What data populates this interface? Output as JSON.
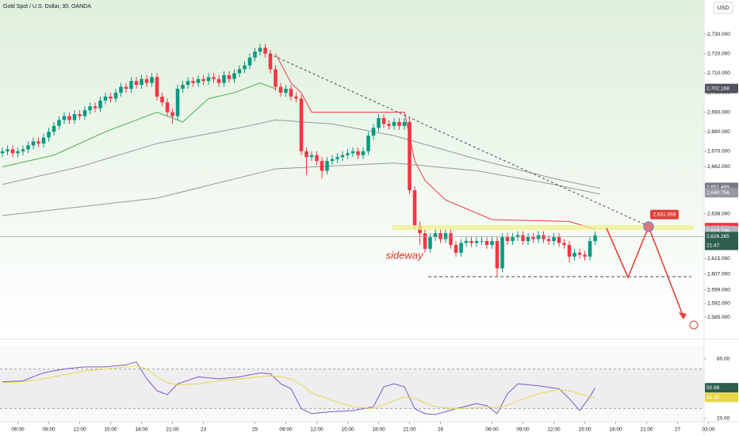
{
  "chart_data": [
    {
      "type": "candlestick",
      "title": "Gold Spot / U.S. Dollar, 30, OANDA",
      "currency": "USD",
      "countdown": "21:47",
      "up_color": "#089981",
      "down_color": "#f23645",
      "open": [
        2669,
        2670,
        2671,
        2669,
        2670,
        2671,
        2673,
        2675,
        2674,
        2677,
        2680,
        2683,
        2686,
        2688,
        2686,
        2689,
        2688,
        2691,
        2693,
        2692,
        2696,
        2698,
        2697,
        2700,
        2703,
        2702,
        2706,
        2704,
        2707,
        2705,
        2708,
        2698,
        2695,
        2690,
        2688,
        2702,
        2704,
        2706,
        2705,
        2707,
        2706,
        2708,
        2707,
        2705,
        2709,
        2707,
        2710,
        2712,
        2714,
        2718,
        2721,
        2723,
        2720,
        2712,
        2703,
        2700,
        2702,
        2698,
        2697,
        2670,
        2667,
        2668,
        2665,
        2660,
        2665,
        2666,
        2667,
        2668,
        2669,
        2670,
        2668,
        2670,
        2678,
        2682,
        2687,
        2684,
        2683,
        2685,
        2683,
        2685,
        2650,
        2632,
        2628,
        2620,
        2626,
        2628,
        2625,
        2628,
        2622,
        2618,
        2623,
        2624,
        2623,
        2624,
        2624,
        2622,
        2624,
        2610,
        2626,
        2624,
        2626,
        2627,
        2624,
        2626,
        2625,
        2627,
        2625,
        2624,
        2626,
        2623,
        2622,
        2616,
        2618,
        2617,
        2616,
        2624
      ],
      "high": [
        2672,
        2673,
        2673,
        2672,
        2673,
        2675,
        2677,
        2677,
        2679,
        2682,
        2685,
        2688,
        2690,
        2690,
        2691,
        2691,
        2693,
        2695,
        2695,
        2698,
        2700,
        2700,
        2702,
        2705,
        2705,
        2708,
        2708,
        2709,
        2709,
        2710,
        2710,
        2700,
        2697,
        2692,
        2704,
        2706,
        2708,
        2708,
        2709,
        2709,
        2710,
        2710,
        2709,
        2711,
        2711,
        2712,
        2714,
        2716,
        2720,
        2723,
        2725,
        2725,
        2722,
        2714,
        2705,
        2704,
        2704,
        2700,
        2699,
        2672,
        2670,
        2670,
        2667,
        2667,
        2668,
        2669,
        2670,
        2671,
        2672,
        2672,
        2672,
        2680,
        2684,
        2689,
        2689,
        2686,
        2687,
        2687,
        2687,
        2687,
        2652,
        2634,
        2630,
        2628,
        2630,
        2630,
        2630,
        2630,
        2624,
        2625,
        2626,
        2626,
        2626,
        2626,
        2626,
        2626,
        2626,
        2628,
        2628,
        2628,
        2629,
        2629,
        2628,
        2628,
        2629,
        2629,
        2627,
        2628,
        2628,
        2625,
        2624,
        2620,
        2620,
        2619,
        2626,
        2629
      ],
      "low": [
        2667,
        2668,
        2667,
        2667,
        2668,
        2669,
        2671,
        2672,
        2672,
        2675,
        2678,
        2681,
        2684,
        2684,
        2684,
        2686,
        2686,
        2689,
        2690,
        2690,
        2694,
        2695,
        2695,
        2698,
        2700,
        2700,
        2702,
        2702,
        2703,
        2703,
        2696,
        2693,
        2688,
        2684,
        2686,
        2700,
        2702,
        2703,
        2703,
        2704,
        2704,
        2705,
        2703,
        2703,
        2705,
        2705,
        2708,
        2710,
        2712,
        2716,
        2719,
        2718,
        2710,
        2701,
        2698,
        2698,
        2696,
        2695,
        2668,
        2658,
        2665,
        2663,
        2656,
        2658,
        2663,
        2664,
        2665,
        2666,
        2667,
        2666,
        2666,
        2668,
        2676,
        2680,
        2682,
        2681,
        2681,
        2681,
        2681,
        2648,
        2630,
        2622,
        2618,
        2618,
        2624,
        2623,
        2623,
        2620,
        2616,
        2616,
        2621,
        2621,
        2621,
        2622,
        2620,
        2620,
        2606,
        2608,
        2622,
        2622,
        2624,
        2622,
        2622,
        2623,
        2623,
        2623,
        2622,
        2622,
        2621,
        2620,
        2613,
        2614,
        2615,
        2614,
        2614,
        2622
      ],
      "close": [
        2670,
        2671,
        2669,
        2670,
        2671,
        2673,
        2675,
        2674,
        2677,
        2680,
        2683,
        2686,
        2688,
        2686,
        2689,
        2688,
        2691,
        2693,
        2692,
        2696,
        2698,
        2697,
        2700,
        2703,
        2702,
        2706,
        2704,
        2707,
        2705,
        2708,
        2698,
        2695,
        2690,
        2688,
        2702,
        2704,
        2706,
        2705,
        2707,
        2706,
        2708,
        2707,
        2705,
        2709,
        2707,
        2710,
        2712,
        2714,
        2718,
        2721,
        2723,
        2720,
        2712,
        2703,
        2700,
        2702,
        2698,
        2697,
        2670,
        2667,
        2668,
        2665,
        2660,
        2665,
        2666,
        2667,
        2668,
        2669,
        2670,
        2668,
        2670,
        2678,
        2682,
        2687,
        2684,
        2683,
        2685,
        2683,
        2685,
        2650,
        2632,
        2628,
        2620,
        2626,
        2628,
        2625,
        2628,
        2622,
        2618,
        2623,
        2624,
        2623,
        2624,
        2624,
        2622,
        2624,
        2610,
        2626,
        2624,
        2626,
        2627,
        2624,
        2626,
        2625,
        2627,
        2625,
        2624,
        2626,
        2623,
        2622,
        2616,
        2618,
        2617,
        2616,
        2624,
        2627
      ],
      "overlays": [
        {
          "color": "#9598a1",
          "x": [
            0,
            15,
            30,
            46,
            53,
            64,
            76,
            92,
            107,
            116
          ],
          "values": [
            2653,
            2662,
            2674,
            2682,
            2686,
            2684,
            2678,
            2666,
            2656,
            2651
          ]
        },
        {
          "color": "#9598a1",
          "x": [
            0,
            30,
            53,
            76,
            92,
            107,
            116
          ],
          "values": [
            2637,
            2646,
            2661,
            2664,
            2660,
            2653,
            2648
          ]
        },
        {
          "color": "#4caf50",
          "x": [
            0,
            10,
            20,
            30,
            35,
            40,
            45,
            50,
            53
          ],
          "values": [
            2662,
            2668,
            2680,
            2690,
            2685,
            2697,
            2700,
            2705,
            2702
          ]
        },
        {
          "color": "#f23645",
          "x": [
            53,
            56,
            58,
            60,
            78,
            80,
            82,
            86,
            95,
            110,
            115
          ],
          "values": [
            2720,
            2705,
            2700,
            2690,
            2690,
            2665,
            2655,
            2645,
            2635,
            2634,
            2630
          ]
        }
      ],
      "xlim": [
        -0.46,
        136.15
      ],
      "xticks": [
        {
          "value": 3,
          "label": "06:00"
        },
        {
          "value": 9,
          "label": "09:00"
        },
        {
          "value": 15,
          "label": "12:00"
        },
        {
          "value": 21,
          "label": "15:00"
        },
        {
          "value": 27,
          "label": "18:00"
        },
        {
          "value": 33,
          "label": "21:00"
        },
        {
          "value": 39,
          "label": "23"
        },
        {
          "value": 49,
          "label": "25"
        },
        {
          "value": 55,
          "label": "09:00"
        },
        {
          "value": 61,
          "label": "12:00"
        },
        {
          "value": 67,
          "label": "15:00"
        },
        {
          "value": 73,
          "label": "18:00"
        },
        {
          "value": 79,
          "label": "21:00"
        },
        {
          "value": 85,
          "label": "26"
        },
        {
          "value": 95,
          "label": "06:00"
        },
        {
          "value": 101,
          "label": "09:00"
        },
        {
          "value": 107,
          "label": "12:00"
        },
        {
          "value": 113,
          "label": "15:00"
        },
        {
          "value": 119,
          "label": "18:00"
        },
        {
          "value": 125,
          "label": "21:00"
        },
        {
          "value": 131,
          "label": "27"
        },
        {
          "value": 137,
          "label": "03:00"
        }
      ],
      "ylim": [
        2576.9,
        2747.5
      ],
      "yticks": [
        {
          "value": 2730,
          "label": "2,730.000"
        },
        {
          "value": 2720,
          "label": "2,720.000"
        },
        {
          "value": 2710,
          "label": "2,710.000"
        },
        {
          "value": 2700,
          "label": "2,700.000"
        },
        {
          "value": 2690,
          "label": "2,690.000"
        },
        {
          "value": 2680,
          "label": "2,680.000"
        },
        {
          "value": 2670,
          "label": "2,670.000"
        },
        {
          "value": 2662,
          "label": "2,662.000"
        },
        {
          "value": 2638,
          "label": "2,638.000"
        },
        {
          "value": 2615,
          "label": "2,615.000"
        },
        {
          "value": 2607,
          "label": "2,607.000"
        },
        {
          "value": 2599,
          "label": "2,599.000"
        },
        {
          "value": 2592,
          "label": "2,592.000"
        },
        {
          "value": 2585,
          "label": "2,585.000"
        }
      ],
      "price_labels": [
        {
          "value": 2702.168,
          "label": "2,702.168",
          "color": "#50535e"
        },
        {
          "value": 2651.489,
          "label": "2,651.489",
          "color": "#787b86"
        },
        {
          "value": 2648.756,
          "label": "2,648.756",
          "color": "#9598a1"
        },
        {
          "value": 2630.893,
          "label": "2,630.893",
          "color": "#f23645"
        },
        {
          "value": 2629.246,
          "label": "2,629.246",
          "color": "#b2b5be"
        },
        {
          "value": 2626.265,
          "label": "2,626.265",
          "color": "#2e5e4e"
        }
      ],
      "annotations": [
        {
          "text": "sideway"
        },
        {
          "value": 2631.069,
          "label": "2,631.069"
        }
      ]
    },
    {
      "type": "line",
      "series": [
        {
          "color": "#7e57c2",
          "x": [
            0,
            4,
            8,
            12,
            16,
            20,
            24,
            26,
            28,
            30,
            32,
            34,
            38,
            42,
            46,
            50,
            52,
            54,
            56,
            58,
            60,
            64,
            68,
            72,
            74,
            76,
            78,
            80,
            82,
            84,
            88,
            92,
            94,
            96,
            98,
            100,
            104,
            108,
            110,
            112,
            114,
            115
          ],
          "values": [
            57,
            58,
            66,
            70,
            72,
            72,
            74,
            77,
            60,
            48,
            44,
            55,
            62,
            60,
            62,
            66,
            65,
            55,
            50,
            30,
            25,
            27,
            28,
            32,
            52,
            55,
            52,
            30,
            25,
            24,
            30,
            35,
            33,
            25,
            45,
            55,
            53,
            50,
            40,
            28,
            42,
            50.98
          ]
        },
        {
          "color": "#e6d84a",
          "x": [
            0,
            4,
            8,
            12,
            16,
            20,
            24,
            26,
            28,
            30,
            32,
            34,
            38,
            42,
            46,
            50,
            52,
            54,
            56,
            58,
            60,
            64,
            68,
            72,
            74,
            76,
            78,
            80,
            82,
            84,
            88,
            92,
            94,
            96,
            98,
            100,
            104,
            108,
            110,
            112,
            114,
            115
          ],
          "values": [
            56,
            57,
            60,
            64,
            68,
            70,
            72,
            73,
            70,
            62,
            56,
            54,
            55,
            58,
            60,
            62,
            63,
            62,
            60,
            54,
            46,
            38,
            32,
            30,
            34,
            38,
            42,
            40,
            36,
            32,
            30,
            31,
            32,
            31,
            33,
            38,
            45,
            49,
            48,
            45,
            42,
            41.32
          ]
        }
      ],
      "ylim": [
        16.8,
        93.4
      ],
      "yticks": [
        {
          "value": 80,
          "label": "80.00"
        },
        {
          "value": 20,
          "label": "20.00"
        }
      ],
      "bands": [
        30,
        70
      ],
      "price_labels": [
        {
          "value": 50.98,
          "label": "50.98",
          "color": "#2e5e4e"
        },
        {
          "value": 41.32,
          "label": "41.32",
          "color": "#e6d84a"
        }
      ]
    }
  ]
}
